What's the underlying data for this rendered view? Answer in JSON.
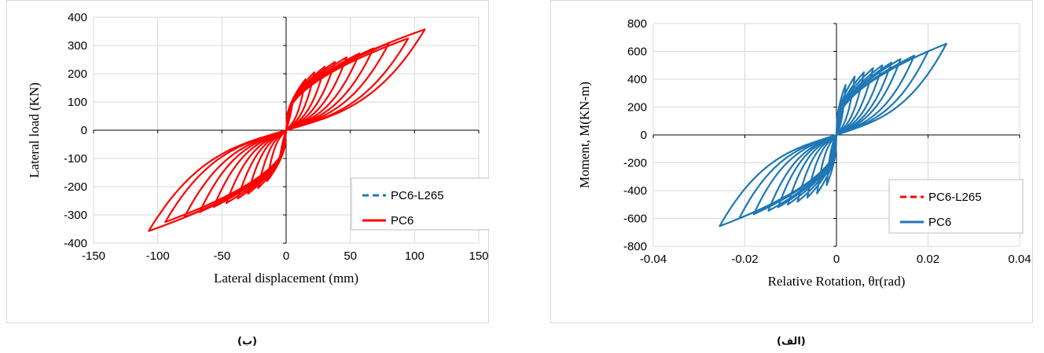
{
  "captions": {
    "left": "(ب)",
    "right": "(الف)"
  },
  "chart_data": [
    {
      "type": "line",
      "xlabel": "Lateral displacement (mm)",
      "ylabel": "Lateral load (KN)",
      "xlim": [
        -150,
        150
      ],
      "ylim": [
        -400,
        400
      ],
      "xticks": [
        "-150",
        "-100",
        "-50",
        "0",
        "50",
        "100",
        "150"
      ],
      "yticks": [
        "400",
        "300",
        "200",
        "100",
        "0",
        "-100",
        "-200",
        "-300",
        "-400"
      ],
      "grid": true,
      "legend_position": "bottom-right",
      "legend": [
        {
          "name": "PC6-L265",
          "style": "dashed",
          "color": "#1f77b4"
        },
        {
          "name": "PC6",
          "style": "solid",
          "color": "#ff0000"
        }
      ],
      "series": [
        {
          "name": "PC6",
          "color": "#ff0000",
          "cycle_peaks": [
            [
              15,
              180
            ],
            [
              22,
              205
            ],
            [
              30,
              225
            ],
            [
              38,
              242
            ],
            [
              47,
              258
            ],
            [
              57,
              272
            ],
            [
              68,
              290
            ],
            [
              80,
              308
            ],
            [
              95,
              325
            ],
            [
              108,
              357
            ]
          ],
          "envelope_neg": [
            -107,
            -357
          ]
        }
      ]
    },
    {
      "type": "line",
      "xlabel": "Relative Rotation, θr(rad)",
      "ylabel": "Moment, M(KN-m)",
      "xlim": [
        -0.04,
        0.04
      ],
      "ylim": [
        -800,
        800
      ],
      "xticks": [
        "-0.04",
        "-0.02",
        "0",
        "0.02",
        "0.04"
      ],
      "yticks": [
        "800",
        "600",
        "400",
        "200",
        "0",
        "-200",
        "-400",
        "-600",
        "-800"
      ],
      "grid": true,
      "legend_position": "bottom-right",
      "legend": [
        {
          "name": "PC6-L265",
          "style": "dashed",
          "color": "#ff0000"
        },
        {
          "name": "PC6",
          "style": "solid",
          "color": "#1f77b4"
        }
      ],
      "series": [
        {
          "name": "PC6",
          "color": "#1f77b4",
          "cycle_peaks": [
            [
              0.002,
              360
            ],
            [
              0.004,
              420
            ],
            [
              0.006,
              450
            ],
            [
              0.008,
              480
            ],
            [
              0.01,
              500
            ],
            [
              0.012,
              520
            ],
            [
              0.014,
              545
            ],
            [
              0.017,
              570
            ],
            [
              0.02,
              600
            ],
            [
              0.024,
              655
            ]
          ],
          "envelope_neg": [
            -0.0255,
            -655
          ]
        }
      ]
    }
  ]
}
